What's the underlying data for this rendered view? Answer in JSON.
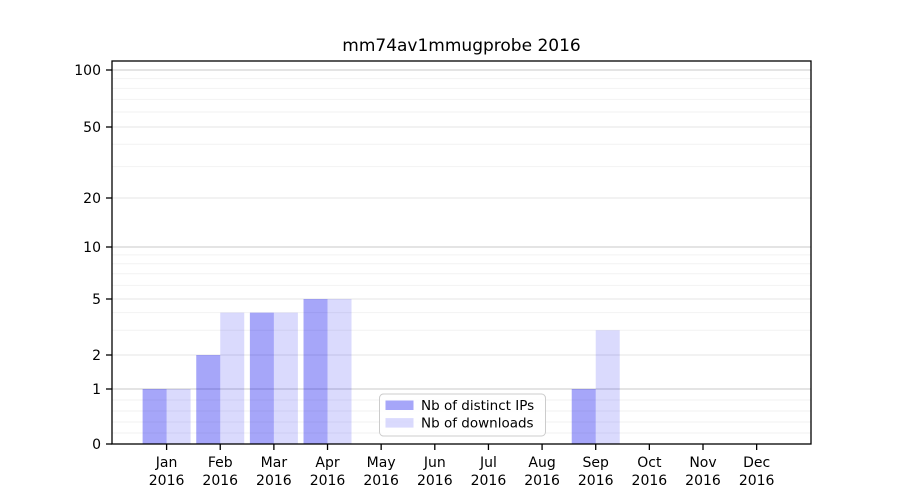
{
  "chart_data": {
    "type": "bar",
    "title": "mm74av1mmugprobe 2016",
    "year_label": "2016",
    "categories": [
      "Jan",
      "Feb",
      "Mar",
      "Apr",
      "May",
      "Jun",
      "Jul",
      "Aug",
      "Sep",
      "Oct",
      "Nov",
      "Dec"
    ],
    "series": [
      {
        "name": "Nb of distinct IPs",
        "values": [
          1,
          2,
          4,
          5,
          0,
          0,
          0,
          0,
          1,
          0,
          0,
          0
        ],
        "color": "#0000ee",
        "fill_opacity": 0.35,
        "rendered_color": "#a6a6f9"
      },
      {
        "name": "Nb of downloads",
        "values": [
          1,
          4,
          4,
          5,
          0,
          0,
          0,
          0,
          3,
          0,
          0,
          0
        ],
        "color": "#0000ee",
        "fill_opacity": 0.145,
        "rendered_color": "#dadaf9"
      }
    ],
    "y_ticks": [
      0,
      1,
      2,
      5,
      10,
      20,
      50,
      100
    ],
    "ylim": [
      0,
      100
    ],
    "xlabel": "",
    "ylabel": "",
    "scale": "symlog (linear 0-1, logarithmic 1-100)",
    "grid": true,
    "legend_position": "lower center",
    "colors": {
      "axis": "#000000",
      "grid_strong": "#c8c8c8",
      "grid_medium": "#e4e4e4",
      "grid_minor": "#f2f2f2",
      "legend_border": "#cccccc",
      "background": "#ffffff"
    }
  }
}
